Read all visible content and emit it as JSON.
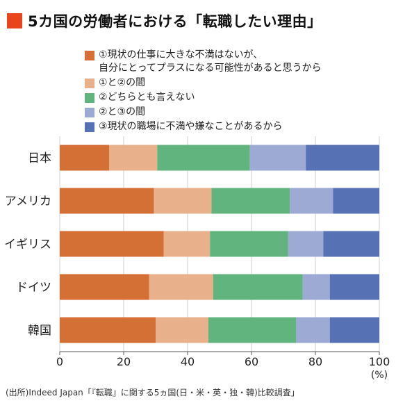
{
  "title": "5カ国の労働者における「転職したい理由」",
  "colors": {
    "title_mark": "#e8451c",
    "series": [
      "#d46f35",
      "#e9b08c",
      "#62b47e",
      "#9caad4",
      "#5672b5"
    ],
    "grid": "#cfcfcf",
    "axis": "#555555"
  },
  "chart_data": {
    "type": "bar",
    "orientation": "horizontal",
    "stacked": true,
    "categories": [
      "日本",
      "アメリカ",
      "イギリス",
      "ドイツ",
      "韓国"
    ],
    "series": [
      {
        "name": "①現状の仕事に大きな不満はないが、\n自分にとってプラスになる可能性があると思うから",
        "values": [
          15.5,
          29.5,
          32.5,
          28,
          30
        ]
      },
      {
        "name": "①と②の間",
        "values": [
          15,
          18,
          14.5,
          20,
          16.5
        ]
      },
      {
        "name": "②どちらとも言えない",
        "values": [
          29,
          24.5,
          24.5,
          28,
          27.5
        ]
      },
      {
        "name": "②と③の間",
        "values": [
          17.5,
          13.5,
          11,
          8.5,
          10.5
        ]
      },
      {
        "name": "③現状の職場に不満や嫌なことがあるから",
        "values": [
          23,
          14.5,
          17.5,
          15.5,
          15.5
        ]
      }
    ],
    "xlim": [
      0,
      100
    ],
    "xticks": [
      0,
      20,
      40,
      60,
      80,
      100
    ],
    "x_unit": "(%)",
    "grid": true,
    "legend_position": "top"
  },
  "source": "(出所)Indeed Japan「『転職』に関する5ヵ国(日・米・英・独・韓)比較調査」"
}
